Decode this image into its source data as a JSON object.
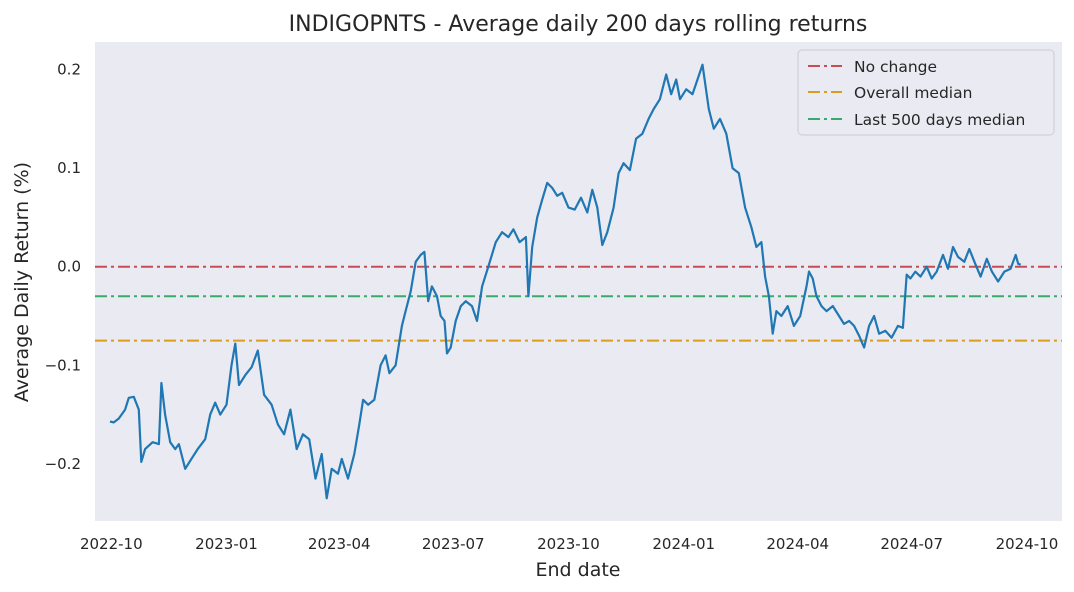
{
  "chart_data": {
    "type": "line",
    "title": "INDIGOPNTS - Average daily 200 days rolling returns",
    "xlabel": "End date",
    "ylabel": "Average Daily Return (%)",
    "x_ticks": [
      "2022-10",
      "2023-01",
      "2023-04",
      "2023-07",
      "2023-10",
      "2024-01",
      "2024-04",
      "2024-07",
      "2024-10"
    ],
    "y_ticks": [
      "−0.2",
      "−0.1",
      "0.0",
      "0.1",
      "0.2"
    ],
    "y_tick_values": [
      -0.2,
      -0.1,
      0.0,
      0.1,
      0.2
    ],
    "ylim": [
      -0.258,
      0.228
    ],
    "xlim": [
      "2022-09-18",
      "2024-10-29"
    ],
    "grid": false,
    "legend_position": "top-right",
    "reference_lines": [
      {
        "name": "No change",
        "value": 0.0,
        "color": "#c44e52",
        "style": "dash-dot"
      },
      {
        "name": "Overall median",
        "value": -0.075,
        "color": "#dd9c1e",
        "style": "dash-dot"
      },
      {
        "name": "Last 500 days median",
        "value": -0.03,
        "color": "#3aaa6a",
        "style": "dash-dot"
      }
    ],
    "series": [
      {
        "color": "#1f77b4",
        "points": [
          [
            "2022-09-30",
            -0.157
          ],
          [
            "2022-10-03",
            -0.158
          ],
          [
            "2022-10-07",
            -0.154
          ],
          [
            "2022-10-12",
            -0.145
          ],
          [
            "2022-10-15",
            -0.133
          ],
          [
            "2022-10-19",
            -0.132
          ],
          [
            "2022-10-23",
            -0.145
          ],
          [
            "2022-10-25",
            -0.198
          ],
          [
            "2022-10-28",
            -0.185
          ],
          [
            "2022-11-03",
            -0.178
          ],
          [
            "2022-11-08",
            -0.18
          ],
          [
            "2022-11-10",
            -0.118
          ],
          [
            "2022-11-13",
            -0.15
          ],
          [
            "2022-11-17",
            -0.178
          ],
          [
            "2022-11-21",
            -0.185
          ],
          [
            "2022-11-24",
            -0.18
          ],
          [
            "2022-11-29",
            -0.205
          ],
          [
            "2022-12-04",
            -0.195
          ],
          [
            "2022-12-09",
            -0.185
          ],
          [
            "2022-12-15",
            -0.175
          ],
          [
            "2022-12-19",
            -0.15
          ],
          [
            "2022-12-23",
            -0.138
          ],
          [
            "2022-12-27",
            -0.15
          ],
          [
            "2023-01-01",
            -0.14
          ],
          [
            "2023-01-05",
            -0.1
          ],
          [
            "2023-01-08",
            -0.078
          ],
          [
            "2023-01-11",
            -0.12
          ],
          [
            "2023-01-16",
            -0.11
          ],
          [
            "2023-01-21",
            -0.102
          ],
          [
            "2023-01-26",
            -0.085
          ],
          [
            "2023-01-31",
            -0.13
          ],
          [
            "2023-02-06",
            -0.14
          ],
          [
            "2023-02-11",
            -0.16
          ],
          [
            "2023-02-16",
            -0.17
          ],
          [
            "2023-02-21",
            -0.145
          ],
          [
            "2023-02-26",
            -0.185
          ],
          [
            "2023-03-03",
            -0.17
          ],
          [
            "2023-03-08",
            -0.175
          ],
          [
            "2023-03-13",
            -0.215
          ],
          [
            "2023-03-18",
            -0.19
          ],
          [
            "2023-03-22",
            -0.235
          ],
          [
            "2023-03-26",
            -0.205
          ],
          [
            "2023-03-31",
            -0.21
          ],
          [
            "2023-04-03",
            -0.195
          ],
          [
            "2023-04-08",
            -0.215
          ],
          [
            "2023-04-13",
            -0.19
          ],
          [
            "2023-04-17",
            -0.16
          ],
          [
            "2023-04-20",
            -0.135
          ],
          [
            "2023-04-24",
            -0.14
          ],
          [
            "2023-04-29",
            -0.135
          ],
          [
            "2023-05-04",
            -0.1
          ],
          [
            "2023-05-08",
            -0.09
          ],
          [
            "2023-05-11",
            -0.108
          ],
          [
            "2023-05-16",
            -0.1
          ],
          [
            "2023-05-21",
            -0.06
          ],
          [
            "2023-05-24",
            -0.045
          ],
          [
            "2023-05-28",
            -0.025
          ],
          [
            "2023-06-01",
            0.005
          ],
          [
            "2023-06-05",
            0.012
          ],
          [
            "2023-06-08",
            0.015
          ],
          [
            "2023-06-11",
            -0.035
          ],
          [
            "2023-06-14",
            -0.02
          ],
          [
            "2023-06-18",
            -0.03
          ],
          [
            "2023-06-21",
            -0.05
          ],
          [
            "2023-06-24",
            -0.055
          ],
          [
            "2023-06-26",
            -0.088
          ],
          [
            "2023-06-29",
            -0.082
          ],
          [
            "2023-07-03",
            -0.055
          ],
          [
            "2023-07-07",
            -0.04
          ],
          [
            "2023-07-11",
            -0.035
          ],
          [
            "2023-07-16",
            -0.04
          ],
          [
            "2023-07-20",
            -0.055
          ],
          [
            "2023-07-24",
            -0.02
          ],
          [
            "2023-07-29",
            0.0
          ],
          [
            "2023-08-04",
            0.025
          ],
          [
            "2023-08-09",
            0.035
          ],
          [
            "2023-08-14",
            0.03
          ],
          [
            "2023-08-18",
            0.038
          ],
          [
            "2023-08-23",
            0.025
          ],
          [
            "2023-08-28",
            0.03
          ],
          [
            "2023-08-30",
            -0.03
          ],
          [
            "2023-09-02",
            0.02
          ],
          [
            "2023-09-06",
            0.05
          ],
          [
            "2023-09-10",
            0.068
          ],
          [
            "2023-09-14",
            0.085
          ],
          [
            "2023-09-18",
            0.08
          ],
          [
            "2023-09-22",
            0.072
          ],
          [
            "2023-09-26",
            0.075
          ],
          [
            "2023-10-01",
            0.06
          ],
          [
            "2023-10-06",
            0.058
          ],
          [
            "2023-10-11",
            0.07
          ],
          [
            "2023-10-16",
            0.055
          ],
          [
            "2023-10-20",
            0.078
          ],
          [
            "2023-10-24",
            0.06
          ],
          [
            "2023-10-28",
            0.022
          ],
          [
            "2023-11-01",
            0.035
          ],
          [
            "2023-11-06",
            0.06
          ],
          [
            "2023-11-10",
            0.095
          ],
          [
            "2023-11-14",
            0.105
          ],
          [
            "2023-11-19",
            0.098
          ],
          [
            "2023-11-24",
            0.13
          ],
          [
            "2023-11-29",
            0.135
          ],
          [
            "2023-12-04",
            0.15
          ],
          [
            "2023-12-08",
            0.16
          ],
          [
            "2023-12-13",
            0.17
          ],
          [
            "2023-12-18",
            0.195
          ],
          [
            "2023-12-22",
            0.175
          ],
          [
            "2023-12-26",
            0.19
          ],
          [
            "2023-12-29",
            0.17
          ],
          [
            "2024-01-03",
            0.18
          ],
          [
            "2024-01-08",
            0.175
          ],
          [
            "2024-01-12",
            0.19
          ],
          [
            "2024-01-16",
            0.205
          ],
          [
            "2024-01-21",
            0.16
          ],
          [
            "2024-01-25",
            0.14
          ],
          [
            "2024-01-30",
            0.15
          ],
          [
            "2024-02-04",
            0.135
          ],
          [
            "2024-02-09",
            0.1
          ],
          [
            "2024-02-14",
            0.095
          ],
          [
            "2024-02-19",
            0.06
          ],
          [
            "2024-02-24",
            0.04
          ],
          [
            "2024-02-28",
            0.02
          ],
          [
            "2024-03-03",
            0.025
          ],
          [
            "2024-03-06",
            -0.01
          ],
          [
            "2024-03-09",
            -0.03
          ],
          [
            "2024-03-12",
            -0.068
          ],
          [
            "2024-03-15",
            -0.045
          ],
          [
            "2024-03-19",
            -0.05
          ],
          [
            "2024-03-24",
            -0.04
          ],
          [
            "2024-03-29",
            -0.06
          ],
          [
            "2024-04-03",
            -0.05
          ],
          [
            "2024-04-08",
            -0.02
          ],
          [
            "2024-04-10",
            -0.005
          ],
          [
            "2024-04-13",
            -0.012
          ],
          [
            "2024-04-16",
            -0.03
          ],
          [
            "2024-04-20",
            -0.04
          ],
          [
            "2024-04-24",
            -0.045
          ],
          [
            "2024-04-29",
            -0.04
          ],
          [
            "2024-05-03",
            -0.048
          ],
          [
            "2024-05-08",
            -0.058
          ],
          [
            "2024-05-12",
            -0.055
          ],
          [
            "2024-05-16",
            -0.06
          ],
          [
            "2024-05-20",
            -0.07
          ],
          [
            "2024-05-24",
            -0.082
          ],
          [
            "2024-05-28",
            -0.06
          ],
          [
            "2024-06-01",
            -0.05
          ],
          [
            "2024-06-05",
            -0.068
          ],
          [
            "2024-06-10",
            -0.065
          ],
          [
            "2024-06-15",
            -0.072
          ],
          [
            "2024-06-20",
            -0.06
          ],
          [
            "2024-06-24",
            -0.062
          ],
          [
            "2024-06-27",
            -0.008
          ],
          [
            "2024-06-30",
            -0.012
          ],
          [
            "2024-07-04",
            -0.005
          ],
          [
            "2024-07-08",
            -0.01
          ],
          [
            "2024-07-13",
            0.0
          ],
          [
            "2024-07-17",
            -0.012
          ],
          [
            "2024-07-21",
            -0.005
          ],
          [
            "2024-07-26",
            0.012
          ],
          [
            "2024-07-30",
            -0.002
          ],
          [
            "2024-08-03",
            0.02
          ],
          [
            "2024-08-07",
            0.01
          ],
          [
            "2024-08-12",
            0.005
          ],
          [
            "2024-08-16",
            0.018
          ],
          [
            "2024-08-21",
            0.002
          ],
          [
            "2024-08-25",
            -0.01
          ],
          [
            "2024-08-30",
            0.008
          ],
          [
            "2024-09-03",
            -0.005
          ],
          [
            "2024-09-08",
            -0.015
          ],
          [
            "2024-09-13",
            -0.005
          ],
          [
            "2024-09-18",
            -0.002
          ],
          [
            "2024-09-22",
            0.012
          ],
          [
            "2024-09-24",
            0.003
          ],
          [
            "2024-09-26",
            0.002
          ]
        ]
      }
    ]
  }
}
